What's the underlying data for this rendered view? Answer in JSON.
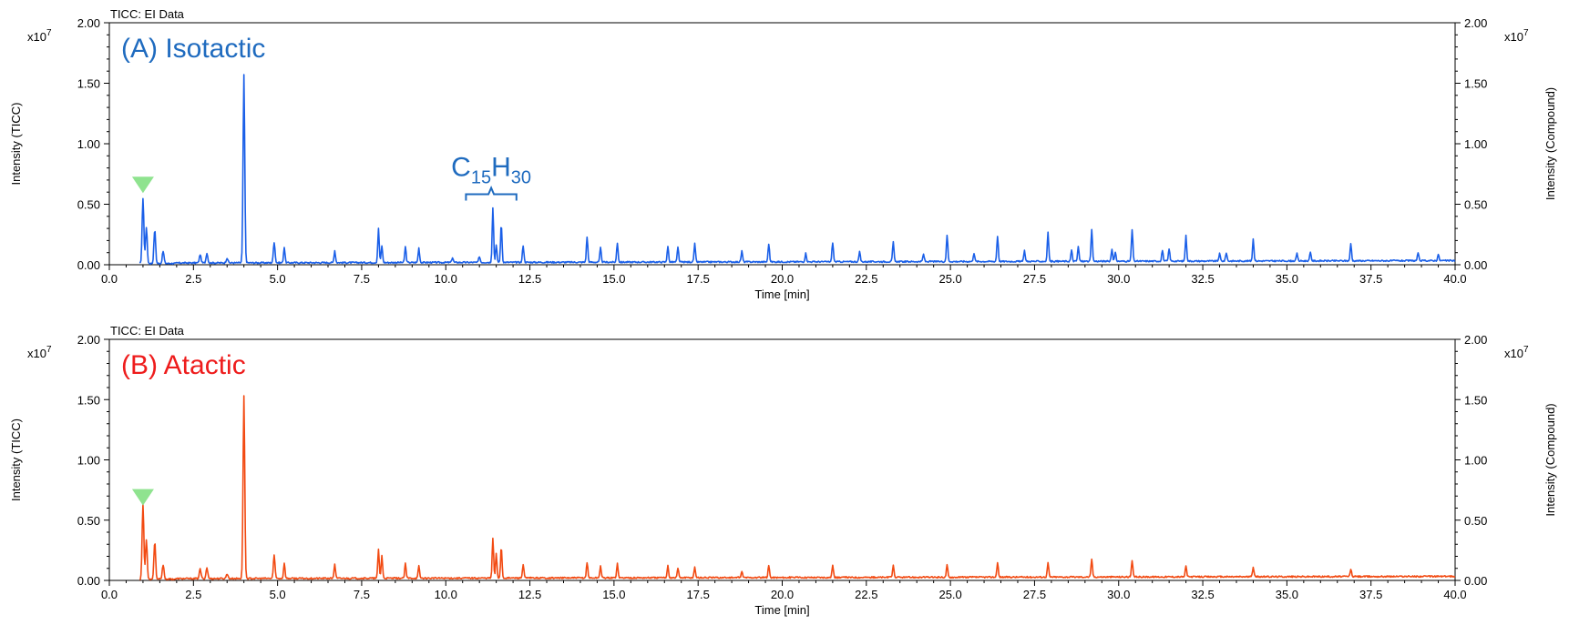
{
  "chart_data": [
    {
      "type": "line",
      "caption": "TICC: EI Data",
      "panel_label": "(A) Isotactic",
      "color": "#1a5fe8",
      "label_color": "#1f6bbf",
      "xlabel": "Time [min]",
      "ylabel_left": "Intensity (TICC)",
      "ylabel_right": "Intensity (Compound)",
      "y_multiplier": "x10",
      "y_multiplier_exp": "7",
      "xlim": [
        0,
        40
      ],
      "ylim": [
        0,
        2.0
      ],
      "x_ticks": [
        "0.0",
        "2.5",
        "5.0",
        "7.5",
        "10.0",
        "12.5",
        "15.0",
        "17.5",
        "20.0",
        "22.5",
        "25.0",
        "27.5",
        "30.0",
        "32.5",
        "35.0",
        "37.5",
        "40.0"
      ],
      "y_ticks": [
        "0.00",
        "0.50",
        "1.00",
        "1.50",
        "2.00"
      ],
      "marker": {
        "x": 1.0,
        "y": 0.66,
        "color": "#8fe38f"
      },
      "annotation": {
        "text_main": "C",
        "sub1": "15",
        "text_h": "H",
        "sub2": "30",
        "x_start": 10.6,
        "x_end": 12.1,
        "y": 0.62
      },
      "peaks": [
        [
          1.0,
          0.54
        ],
        [
          1.1,
          0.3
        ],
        [
          1.35,
          0.28
        ],
        [
          1.6,
          0.1
        ],
        [
          2.7,
          0.07
        ],
        [
          2.9,
          0.08
        ],
        [
          3.5,
          0.04
        ],
        [
          4.0,
          1.55
        ],
        [
          4.9,
          0.17
        ],
        [
          5.2,
          0.13
        ],
        [
          6.7,
          0.1
        ],
        [
          8.0,
          0.28
        ],
        [
          8.1,
          0.14
        ],
        [
          8.8,
          0.13
        ],
        [
          9.2,
          0.12
        ],
        [
          10.2,
          0.04
        ],
        [
          11.0,
          0.05
        ],
        [
          11.4,
          0.45
        ],
        [
          11.5,
          0.14
        ],
        [
          11.65,
          0.32
        ],
        [
          12.3,
          0.14
        ],
        [
          14.2,
          0.21
        ],
        [
          14.6,
          0.12
        ],
        [
          15.1,
          0.16
        ],
        [
          16.6,
          0.13
        ],
        [
          16.9,
          0.12
        ],
        [
          17.4,
          0.15
        ],
        [
          18.8,
          0.09
        ],
        [
          19.6,
          0.15
        ],
        [
          20.7,
          0.07
        ],
        [
          21.5,
          0.16
        ],
        [
          22.3,
          0.08
        ],
        [
          23.3,
          0.16
        ],
        [
          24.2,
          0.06
        ],
        [
          24.9,
          0.22
        ],
        [
          25.7,
          0.07
        ],
        [
          26.4,
          0.21
        ],
        [
          27.2,
          0.09
        ],
        [
          27.9,
          0.24
        ],
        [
          28.6,
          0.09
        ],
        [
          28.8,
          0.12
        ],
        [
          29.8,
          0.1
        ],
        [
          29.9,
          0.07
        ],
        [
          29.2,
          0.26
        ],
        [
          30.4,
          0.26
        ],
        [
          31.3,
          0.09
        ],
        [
          31.5,
          0.1
        ],
        [
          32.0,
          0.21
        ],
        [
          33.0,
          0.06
        ],
        [
          33.2,
          0.07
        ],
        [
          34.0,
          0.18
        ],
        [
          35.3,
          0.06
        ],
        [
          35.7,
          0.07
        ],
        [
          36.9,
          0.14
        ],
        [
          38.9,
          0.06
        ],
        [
          39.5,
          0.05
        ]
      ]
    },
    {
      "type": "line",
      "caption": "TICC: EI Data",
      "panel_label": "(B) Atactic",
      "color": "#f24a12",
      "label_color": "#ee1c1c",
      "xlabel": "Time [min]",
      "ylabel_left": "Intensity (TICC)",
      "ylabel_right": "Intensity (Compound)",
      "y_multiplier": "x10",
      "y_multiplier_exp": "7",
      "xlim": [
        0,
        40
      ],
      "ylim": [
        0,
        2.0
      ],
      "x_ticks": [
        "0.0",
        "2.5",
        "5.0",
        "7.5",
        "10.0",
        "12.5",
        "15.0",
        "17.5",
        "20.0",
        "22.5",
        "25.0",
        "27.5",
        "30.0",
        "32.5",
        "35.0",
        "37.5",
        "40.0"
      ],
      "y_ticks": [
        "0.00",
        "0.50",
        "1.00",
        "1.50",
        "2.00"
      ],
      "marker": {
        "x": 1.0,
        "y": 0.69,
        "color": "#8fe38f"
      },
      "peaks": [
        [
          1.0,
          0.62
        ],
        [
          1.1,
          0.33
        ],
        [
          1.35,
          0.31
        ],
        [
          1.6,
          0.12
        ],
        [
          2.7,
          0.08
        ],
        [
          2.9,
          0.09
        ],
        [
          3.5,
          0.04
        ],
        [
          4.0,
          1.52
        ],
        [
          4.9,
          0.19
        ],
        [
          5.2,
          0.13
        ],
        [
          6.7,
          0.12
        ],
        [
          8.0,
          0.24
        ],
        [
          8.1,
          0.19
        ],
        [
          8.8,
          0.12
        ],
        [
          9.2,
          0.1
        ],
        [
          11.4,
          0.33
        ],
        [
          11.5,
          0.2
        ],
        [
          11.65,
          0.26
        ],
        [
          12.3,
          0.11
        ],
        [
          14.2,
          0.13
        ],
        [
          14.6,
          0.1
        ],
        [
          15.1,
          0.12
        ],
        [
          16.6,
          0.1
        ],
        [
          16.9,
          0.08
        ],
        [
          17.4,
          0.09
        ],
        [
          18.8,
          0.05
        ],
        [
          19.6,
          0.1
        ],
        [
          21.5,
          0.1
        ],
        [
          23.3,
          0.1
        ],
        [
          24.9,
          0.1
        ],
        [
          26.4,
          0.12
        ],
        [
          27.9,
          0.12
        ],
        [
          29.2,
          0.15
        ],
        [
          30.4,
          0.13
        ],
        [
          32.0,
          0.09
        ],
        [
          34.0,
          0.08
        ],
        [
          36.9,
          0.06
        ]
      ]
    }
  ]
}
